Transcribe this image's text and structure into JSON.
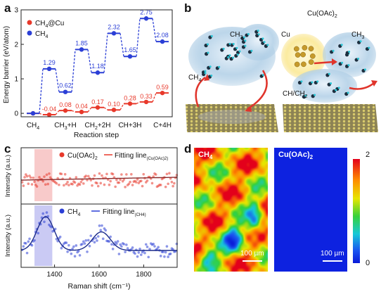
{
  "panels": {
    "a": "a",
    "b": "b",
    "c": "c",
    "d": "d"
  },
  "panel_a": {
    "legend": {
      "cu_base": "CH",
      "cu_sub": "4",
      "cu_tail": "@Cu",
      "ch4_base": "CH",
      "ch4_sub": "4"
    },
    "xlabel": "Reaction step",
    "ylabel": "Energy barrier (eV/atom)",
    "ticks_x": [
      {
        "base": "CH",
        "sub": "4",
        "tail": ""
      },
      {
        "base": "CH",
        "sub": "3",
        "tail": "+H"
      },
      {
        "base": "CH",
        "sub": "2",
        "tail": "+2H"
      },
      {
        "base": "CH",
        "sub": "",
        "tail": "+3H"
      },
      {
        "base": "C",
        "sub": "",
        "tail": "+4H"
      }
    ],
    "colors": {
      "cu": "#e8392b",
      "ch4": "#2b3fd6"
    }
  },
  "chart_data": [
    {
      "type": "line",
      "xlabel": "Reaction step",
      "ylabel": "Energy barrier (eV/atom)",
      "categories": [
        "CH4",
        "CH3+H",
        "CH2+2H",
        "CH+3H",
        "C+4H"
      ],
      "ylim": [
        -0.1,
        3.0
      ],
      "y_ticks": [
        0,
        1,
        2,
        3
      ],
      "series": [
        {
          "name": "CH4@Cu",
          "levels": [
            0.0,
            -0.04,
            0.08,
            0.04,
            0.17,
            0.1,
            0.28,
            0.33,
            0.59
          ],
          "labels": [
            "",
            "-0.04",
            "0.08",
            "0.04",
            "0.17",
            "0.10",
            "0.28",
            "0.33",
            "0.59"
          ]
        },
        {
          "name": "CH4",
          "levels": [
            0.0,
            1.29,
            0.62,
            1.85,
            1.18,
            2.32,
            1.65,
            2.75,
            2.08
          ],
          "labels": [
            "",
            "1.29",
            "0.62",
            "1.85",
            "1.18",
            "2.32",
            "1.65",
            "2.75",
            "2.08"
          ]
        }
      ]
    },
    {
      "type": "scatter",
      "xlabel": "Raman shift (cm⁻¹)",
      "ylabel": "Intensity (a.u.)",
      "xlim": [
        1250,
        1950
      ],
      "x_ticks": [
        1400,
        1600,
        1800
      ],
      "series": [
        {
          "name": "Cu(OAc)2",
          "note": "flat noisy baseline",
          "fit_peaks": []
        },
        {
          "name": "CH4",
          "note": "bands near 1360 and 1610",
          "fit_peaks": [
            {
              "center": 1360,
              "height": 1.0,
              "width": 38
            },
            {
              "center": 1610,
              "height": 0.55,
              "width": 40
            }
          ]
        }
      ]
    },
    {
      "type": "heatmap",
      "maps": [
        "CH4",
        "Cu(OAc)2"
      ],
      "colorbar_range": [
        0,
        2
      ],
      "scale_bar": "100 µm"
    }
  ],
  "panel_b": {
    "labels": {
      "ch3_left": "CH",
      "ch3_left_sub": "3",
      "ch4": "CH",
      "ch4_sub": "4",
      "cu": "Cu",
      "cuoac_base": "Cu(OAc)",
      "cuoac_sub": "2",
      "ch3_right": "CH",
      "ch3_right_sub": "3",
      "chch2": "CH/CH",
      "chch2_sub": "2"
    }
  },
  "panel_c": {
    "top_legend": {
      "name_base": "Cu(OAc)",
      "name_sub": "2",
      "fit": "Fitting line",
      "fit_sub": "(Cu(OAc)2)"
    },
    "bottom_legend": {
      "name_base": "CH",
      "name_sub": "4",
      "fit": "Fitting line",
      "fit_sub": "(CH4)"
    },
    "xlabel": "Raman shift (cm⁻¹)",
    "ylabel": "Intensity (a.u.)",
    "x_ticks": [
      "1400",
      "1600",
      "1800"
    ],
    "colors": {
      "top": "#e8392b",
      "bottom": "#2b3fd6",
      "top_band": "#f6b8b8",
      "bottom_band": "#b8b8f0"
    }
  },
  "panel_d": {
    "left_title_base": "CH",
    "left_title_sub": "4",
    "right_title_base": "Cu(OAc)",
    "right_title_sub": "2",
    "scale_left": "100 µm",
    "scale_right": "100 µm",
    "cbar_max": "2",
    "cbar_min": "0"
  }
}
